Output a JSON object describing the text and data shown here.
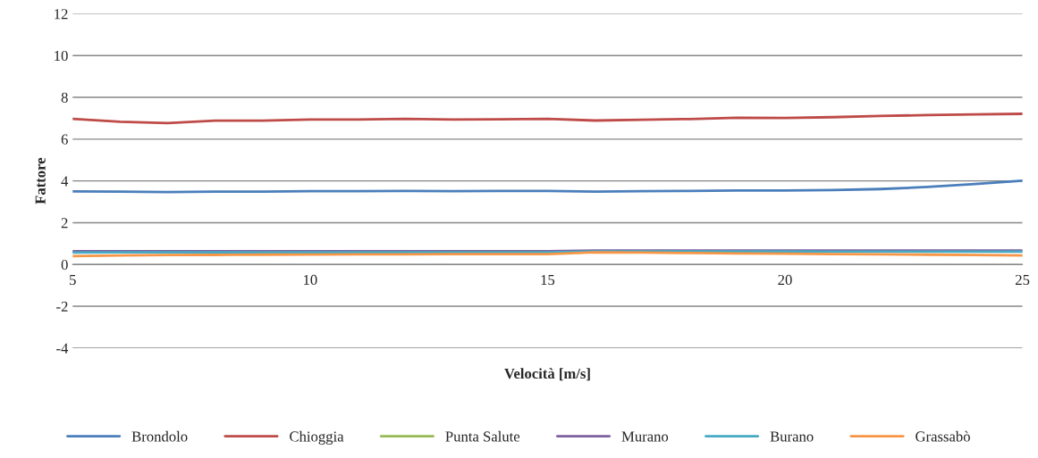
{
  "chart_data": {
    "type": "line",
    "xlabel": "Velocità [m/s]",
    "ylabel": "Fattore",
    "x": [
      5,
      6,
      7,
      8,
      9,
      10,
      11,
      12,
      13,
      14,
      15,
      16,
      17,
      18,
      19,
      20,
      21,
      22,
      23,
      24,
      25
    ],
    "xlim": [
      5,
      25
    ],
    "xticks": [
      5,
      10,
      15,
      20,
      25
    ],
    "ylim": [
      -4,
      12
    ],
    "yticks": [
      -4,
      -2,
      0,
      2,
      4,
      6,
      8,
      10,
      12
    ],
    "grid": "y",
    "legend": "bottom",
    "marker": "none",
    "line_style": "solid",
    "series": [
      {
        "name": "Brondolo",
        "color": "#4a7ebb",
        "values": [
          3.5,
          3.49,
          3.47,
          3.49,
          3.49,
          3.51,
          3.51,
          3.52,
          3.51,
          3.52,
          3.52,
          3.49,
          3.51,
          3.52,
          3.54,
          3.54,
          3.56,
          3.61,
          3.71,
          3.85,
          4.01
        ]
      },
      {
        "name": "Chioggia",
        "color": "#be4b48",
        "values": [
          6.97,
          6.83,
          6.77,
          6.88,
          6.88,
          6.94,
          6.94,
          6.97,
          6.94,
          6.95,
          6.97,
          6.89,
          6.93,
          6.96,
          7.02,
          7.01,
          7.05,
          7.11,
          7.15,
          7.18,
          7.21
        ]
      },
      {
        "name": "Punta Salute",
        "color": "#98b954",
        "values": [
          null,
          null,
          null,
          null,
          null,
          null,
          null,
          null,
          null,
          null,
          null,
          null,
          null,
          null,
          null,
          null,
          null,
          null,
          null,
          null,
          null
        ]
      },
      {
        "name": "Murano",
        "color": "#7d60a0",
        "values": [
          0.63,
          0.64,
          0.64,
          0.64,
          0.64,
          0.64,
          0.64,
          0.64,
          0.64,
          0.64,
          0.64,
          0.67,
          0.67,
          0.67,
          0.67,
          0.67,
          0.67,
          0.67,
          0.67,
          0.67,
          0.67
        ]
      },
      {
        "name": "Burano",
        "color": "#46aac5",
        "values": [
          0.57,
          0.58,
          0.58,
          0.58,
          0.58,
          0.58,
          0.58,
          0.58,
          0.58,
          0.58,
          0.58,
          0.62,
          0.62,
          0.62,
          0.62,
          0.62,
          0.61,
          0.61,
          0.61,
          0.61,
          0.61
        ]
      },
      {
        "name": "Grassabò",
        "color": "#f79646",
        "values": [
          0.4,
          0.43,
          0.45,
          0.46,
          0.47,
          0.48,
          0.49,
          0.49,
          0.5,
          0.5,
          0.5,
          0.58,
          0.57,
          0.55,
          0.53,
          0.52,
          0.5,
          0.49,
          0.47,
          0.45,
          0.43
        ]
      }
    ]
  }
}
